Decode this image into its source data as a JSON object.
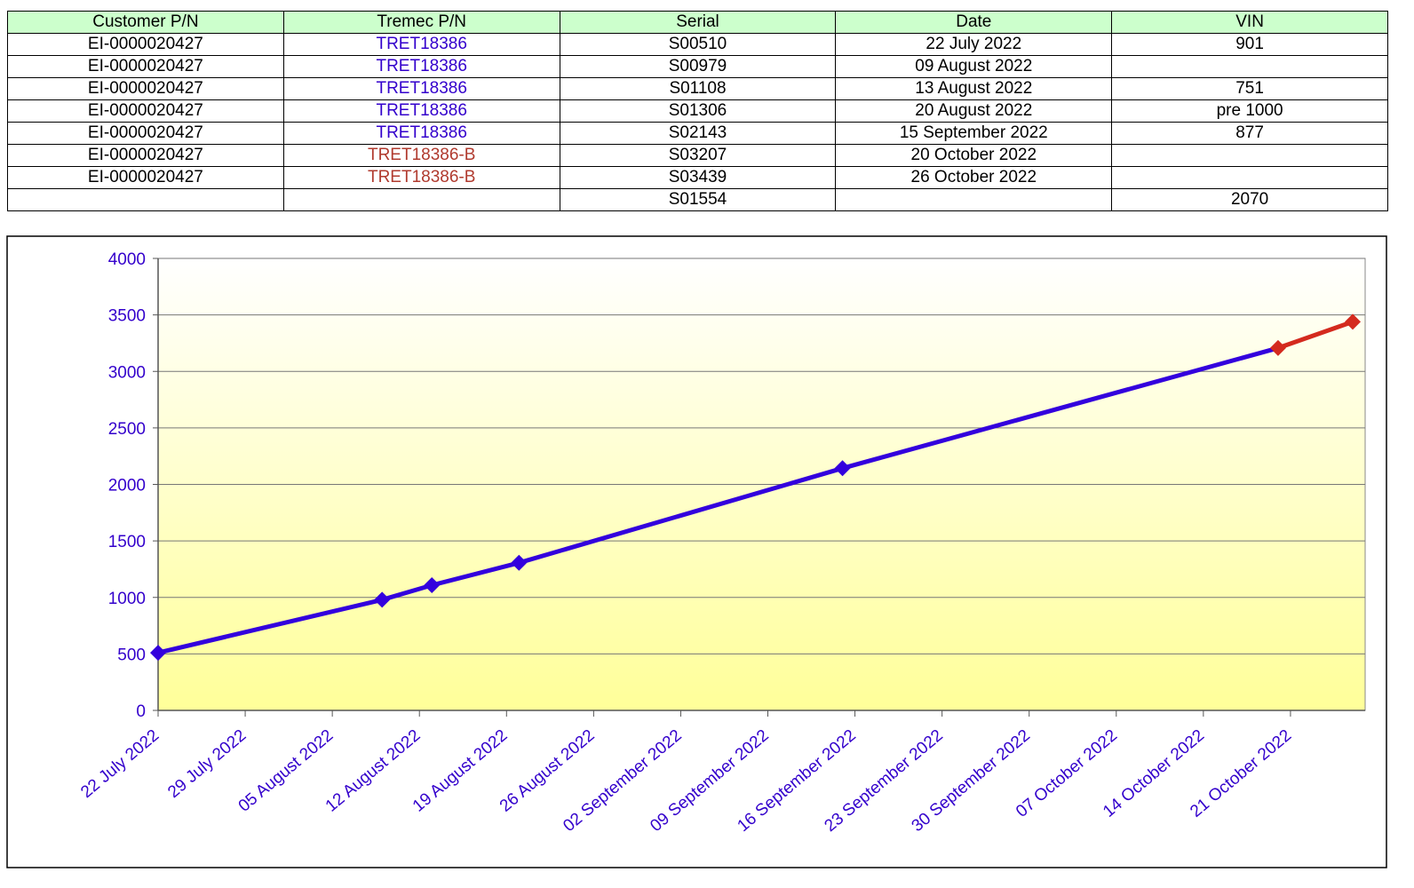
{
  "table": {
    "header": [
      "Customer P/N",
      "Tremec P/N",
      "Serial",
      "Date",
      "VIN"
    ],
    "rows": [
      [
        "EI-0000020427",
        "TRET18386",
        "S00510",
        "22 July 2022",
        "901"
      ],
      [
        "EI-0000020427",
        "TRET18386",
        "S00979",
        "09 August 2022",
        null
      ],
      [
        "EI-0000020427",
        "TRET18386",
        "S01108",
        "13 August 2022",
        "751"
      ],
      [
        "EI-0000020427",
        "TRET18386",
        "S01306",
        "20 August 2022",
        "pre 1000"
      ],
      [
        "EI-0000020427",
        "TRET18386",
        "S02143",
        "15 September 2022",
        "877"
      ],
      [
        "EI-0000020427",
        "TRET18386-B",
        "S03207",
        "20 October 2022",
        null
      ],
      [
        "EI-0000020427",
        "TRET18386-B",
        "S03439",
        "26 October 2022",
        null
      ],
      [
        null,
        null,
        "S01554",
        null,
        "2070"
      ]
    ],
    "tremec_colors": [
      "#3300cc",
      "#3300cc",
      "#3300cc",
      "#3300cc",
      "#3300cc",
      "#b03a2e",
      "#b03a2e",
      null
    ]
  },
  "chart_data": {
    "type": "line",
    "series": [
      {
        "color": "#3300dd",
        "x": [
          "2022-07-22",
          "2022-08-09",
          "2022-08-13",
          "2022-08-20",
          "2022-09-15"
        ],
        "values": [
          510,
          979,
          1108,
          1306,
          2143
        ]
      },
      {
        "color": "#d42a1e",
        "x": [
          "2022-10-20",
          "2022-10-26"
        ],
        "values": [
          3207,
          3439
        ]
      }
    ],
    "xlim": [
      "2022-07-22",
      "2022-10-27"
    ],
    "xticks": [
      {
        "value": "2022-07-22",
        "label": "22 July 2022"
      },
      {
        "value": "2022-07-29",
        "label": "29 July 2022"
      },
      {
        "value": "2022-08-05",
        "label": "05 August 2022"
      },
      {
        "value": "2022-08-12",
        "label": "12 August 2022"
      },
      {
        "value": "2022-08-19",
        "label": "19 August 2022"
      },
      {
        "value": "2022-08-26",
        "label": "26 August 2022"
      },
      {
        "value": "2022-09-02",
        "label": "02 September 2022"
      },
      {
        "value": "2022-09-09",
        "label": "09 September 2022"
      },
      {
        "value": "2022-09-16",
        "label": "16 September 2022"
      },
      {
        "value": "2022-09-23",
        "label": "23 September 2022"
      },
      {
        "value": "2022-09-30",
        "label": "30 September 2022"
      },
      {
        "value": "2022-10-07",
        "label": "07 October 2022"
      },
      {
        "value": "2022-10-14",
        "label": "14 October 2022"
      },
      {
        "value": "2022-10-21",
        "label": "21 October 2022"
      }
    ],
    "ylim": [
      0,
      4000
    ],
    "yticks": [
      0,
      500,
      1000,
      1500,
      2000,
      2500,
      3000,
      3500,
      4000
    ],
    "grid": true
  }
}
